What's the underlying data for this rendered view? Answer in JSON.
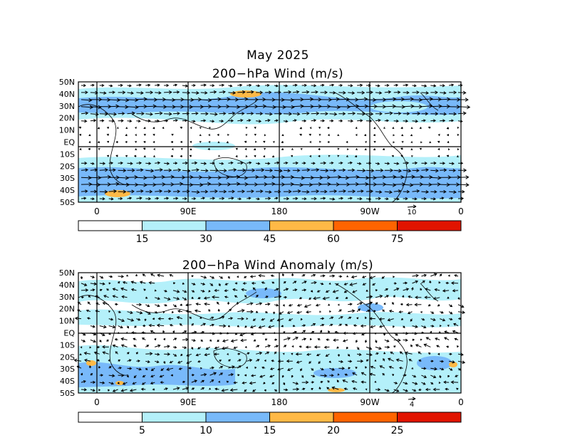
{
  "title": "May 2025",
  "panels": {
    "wind": {
      "title": "200−hPa Wind (m/s)",
      "lat_labels": [
        "50N",
        "40N",
        "30N",
        "20N",
        "10N",
        "EQ",
        "10S",
        "20S",
        "30S",
        "40S",
        "50S"
      ],
      "lon_labels": [
        "0",
        "90E",
        "180",
        "90W",
        "0"
      ],
      "ref_vector": "10",
      "colorbar": {
        "colors": [
          "#ffffff",
          "#b4f0fa",
          "#78b9fa",
          "#ffb946",
          "#ff6400",
          "#e11400"
        ],
        "labels": [
          "15",
          "30",
          "45",
          "60",
          "75"
        ]
      }
    },
    "anomaly": {
      "title": "200−hPa Wind Anomaly (m/s)",
      "lat_labels": [
        "50N",
        "40N",
        "30N",
        "20N",
        "10N",
        "EQ",
        "10S",
        "20S",
        "30S",
        "40S",
        "50S"
      ],
      "lon_labels": [
        "0",
        "90E",
        "180",
        "90W",
        "0"
      ],
      "ref_vector": "4",
      "colorbar": {
        "colors": [
          "#ffffff",
          "#b4f0fa",
          "#78b9fa",
          "#ffb946",
          "#ff6400",
          "#e11400"
        ],
        "labels": [
          "5",
          "10",
          "15",
          "20",
          "25"
        ]
      }
    }
  }
}
